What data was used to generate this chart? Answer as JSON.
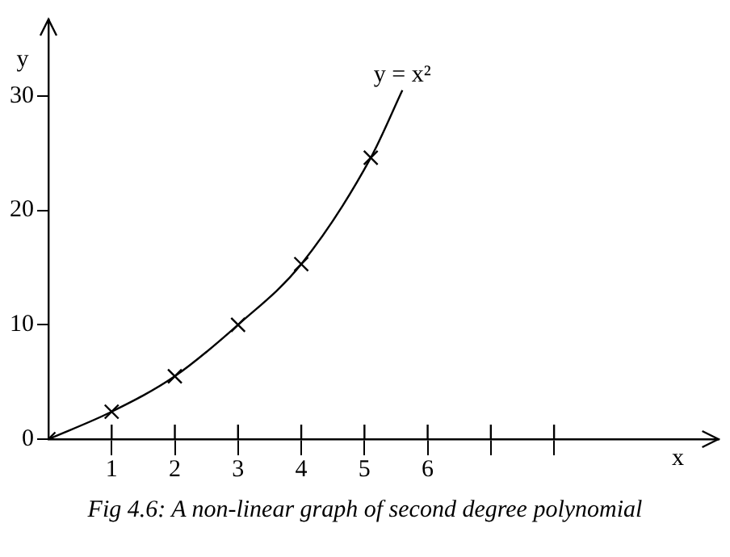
{
  "chart_data": {
    "type": "line",
    "xlabel": "x",
    "ylabel": "y",
    "xlim": [
      0,
      10.6
    ],
    "ylim": [
      0,
      36.7
    ],
    "xticks": [
      1,
      2,
      3,
      4,
      5,
      6,
      {
        "value": 7,
        "label": null
      },
      {
        "value": 8,
        "label": null
      }
    ],
    "yticks": [
      0,
      10,
      20,
      30
    ],
    "grid": false,
    "legend": false,
    "series": [
      {
        "type": "line",
        "color": "#000000",
        "marker": "none",
        "x": [
          0,
          1,
          2,
          3,
          4,
          5.1,
          5.6
        ],
        "values": [
          0,
          2.4,
          5.5,
          10,
          15.3,
          24.6,
          30.5
        ]
      },
      {
        "type": "scatter",
        "color": "#000000",
        "marker": "cross",
        "x": [
          0,
          1,
          2,
          3,
          4,
          5.1
        ],
        "values": [
          0,
          2.4,
          5.5,
          10,
          15.3,
          24.6
        ]
      }
    ],
    "annotations": [
      {
        "text": "y = x²",
        "x": 5.6,
        "y": 30.5
      },
      "Fig 4.6: A non-linear graph of second degree polynomial"
    ]
  }
}
